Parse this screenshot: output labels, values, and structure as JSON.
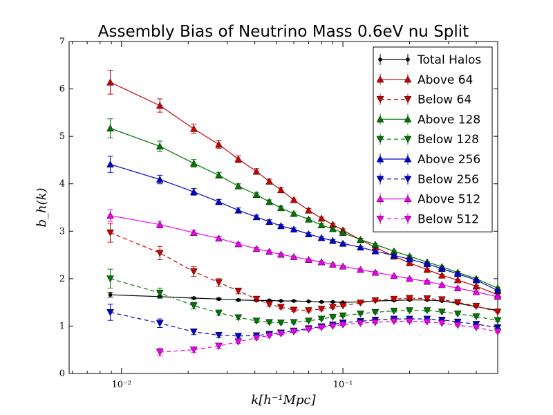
{
  "chart_data": {
    "type": "line",
    "title": "Assembly Bias of Neutrino Mass 0.6eV nu Split",
    "xlabel": "k[h⁻¹Mpc]",
    "ylabel": "b_h(k)",
    "xscale": "log",
    "xlim": [
      0.0058,
      0.5
    ],
    "ylim": [
      0,
      7
    ],
    "grid": false,
    "legend_position": "top-right",
    "x_tick_labels": [
      "10⁻²",
      "10⁻¹"
    ],
    "y_tick_labels": [
      "0",
      "1",
      "2",
      "3",
      "4",
      "5",
      "6",
      "7"
    ],
    "series": [
      {
        "name": "Total Halos",
        "color": "#000000",
        "marker": "circle",
        "linestyle": "solid",
        "points": [
          [
            0.0089,
            1.66
          ],
          [
            0.0149,
            1.62
          ],
          [
            0.0212,
            1.59
          ],
          [
            0.0275,
            1.57
          ],
          [
            0.0337,
            1.55
          ],
          [
            0.0407,
            1.54
          ],
          [
            0.0465,
            1.54
          ],
          [
            0.0525,
            1.53
          ],
          [
            0.06,
            1.53
          ],
          [
            0.07,
            1.52
          ],
          [
            0.08,
            1.51
          ],
          [
            0.09,
            1.51
          ],
          [
            0.1,
            1.5
          ],
          [
            0.12,
            1.51
          ],
          [
            0.14,
            1.53
          ],
          [
            0.17,
            1.54
          ],
          [
            0.2,
            1.55
          ],
          [
            0.24,
            1.55
          ],
          [
            0.28,
            1.53
          ],
          [
            0.33,
            1.48
          ],
          [
            0.4,
            1.41
          ],
          [
            0.5,
            1.33
          ]
        ],
        "errors": [
          0.05,
          0.03,
          0.02,
          0.02,
          0.02,
          0.01,
          0.01,
          0.01,
          0.01,
          0.01,
          0.01,
          0.01,
          0.01,
          0.01,
          0.01,
          0.01,
          0.01,
          0.01,
          0.01,
          0.01,
          0.01,
          0.01
        ]
      },
      {
        "name": "Above 64",
        "color": "#cc0000",
        "marker": "triangle-up",
        "linestyle": "solid",
        "points": [
          [
            0.0089,
            6.14
          ],
          [
            0.0149,
            5.65
          ],
          [
            0.0212,
            5.16
          ],
          [
            0.0275,
            4.83
          ],
          [
            0.0337,
            4.52
          ],
          [
            0.0407,
            4.26
          ],
          [
            0.0465,
            4.05
          ],
          [
            0.0525,
            3.87
          ],
          [
            0.06,
            3.66
          ],
          [
            0.07,
            3.44
          ],
          [
            0.08,
            3.27
          ],
          [
            0.09,
            3.14
          ],
          [
            0.1,
            3.02
          ],
          [
            0.12,
            2.82
          ],
          [
            0.14,
            2.66
          ],
          [
            0.17,
            2.47
          ],
          [
            0.2,
            2.33
          ],
          [
            0.24,
            2.19
          ],
          [
            0.28,
            2.07
          ],
          [
            0.33,
            1.97
          ],
          [
            0.4,
            1.84
          ],
          [
            0.5,
            1.66
          ]
        ],
        "errors": [
          0.25,
          0.14,
          0.1,
          0.08,
          0.07,
          0.06,
          0.05,
          0.05,
          0.04,
          0.04,
          0.03,
          0.03,
          0.03,
          0.03,
          0.02,
          0.02,
          0.02,
          0.02,
          0.02,
          0.02,
          0.02,
          0.02
        ]
      },
      {
        "name": "Below 64",
        "color": "#cc0000",
        "marker": "triangle-down",
        "linestyle": "dashed",
        "points": [
          [
            0.0089,
            2.97
          ],
          [
            0.0149,
            2.54
          ],
          [
            0.0212,
            2.15
          ],
          [
            0.0275,
            1.92
          ],
          [
            0.0337,
            1.74
          ],
          [
            0.0407,
            1.57
          ],
          [
            0.0465,
            1.46
          ],
          [
            0.0525,
            1.4
          ],
          [
            0.06,
            1.34
          ],
          [
            0.07,
            1.33
          ],
          [
            0.08,
            1.36
          ],
          [
            0.09,
            1.4
          ],
          [
            0.1,
            1.43
          ],
          [
            0.12,
            1.49
          ],
          [
            0.14,
            1.54
          ],
          [
            0.17,
            1.57
          ],
          [
            0.2,
            1.59
          ],
          [
            0.24,
            1.58
          ],
          [
            0.28,
            1.56
          ],
          [
            0.33,
            1.5
          ],
          [
            0.4,
            1.42
          ],
          [
            0.5,
            1.3
          ]
        ],
        "errors": [
          0.2,
          0.14,
          0.1,
          0.08,
          0.06,
          0.05,
          0.04,
          0.04,
          0.03,
          0.03,
          0.03,
          0.03,
          0.02,
          0.02,
          0.02,
          0.02,
          0.02,
          0.02,
          0.02,
          0.02,
          0.02,
          0.02
        ]
      },
      {
        "name": "Above 128",
        "color": "#007700",
        "marker": "triangle-up",
        "linestyle": "solid",
        "points": [
          [
            0.0089,
            5.17
          ],
          [
            0.0149,
            4.79
          ],
          [
            0.0212,
            4.43
          ],
          [
            0.0275,
            4.18
          ],
          [
            0.0337,
            3.95
          ],
          [
            0.0407,
            3.77
          ],
          [
            0.0465,
            3.62
          ],
          [
            0.0525,
            3.49
          ],
          [
            0.06,
            3.37
          ],
          [
            0.07,
            3.25
          ],
          [
            0.08,
            3.13
          ],
          [
            0.09,
            3.05
          ],
          [
            0.1,
            2.97
          ],
          [
            0.12,
            2.82
          ],
          [
            0.14,
            2.72
          ],
          [
            0.17,
            2.58
          ],
          [
            0.2,
            2.47
          ],
          [
            0.24,
            2.35
          ],
          [
            0.28,
            2.25
          ],
          [
            0.33,
            2.13
          ],
          [
            0.4,
            2.0
          ],
          [
            0.5,
            1.8
          ]
        ],
        "errors": [
          0.2,
          0.11,
          0.08,
          0.06,
          0.05,
          0.05,
          0.04,
          0.04,
          0.03,
          0.03,
          0.03,
          0.03,
          0.02,
          0.02,
          0.02,
          0.02,
          0.02,
          0.02,
          0.02,
          0.02,
          0.02,
          0.02
        ]
      },
      {
        "name": "Below 128",
        "color": "#007700",
        "marker": "triangle-down",
        "linestyle": "dashed",
        "points": [
          [
            0.0089,
            2.0
          ],
          [
            0.0149,
            1.7
          ],
          [
            0.0212,
            1.43
          ],
          [
            0.0275,
            1.28
          ],
          [
            0.0337,
            1.18
          ],
          [
            0.0407,
            1.11
          ],
          [
            0.0465,
            1.08
          ],
          [
            0.0525,
            1.07
          ],
          [
            0.06,
            1.08
          ],
          [
            0.07,
            1.11
          ],
          [
            0.08,
            1.15
          ],
          [
            0.09,
            1.19
          ],
          [
            0.1,
            1.22
          ],
          [
            0.12,
            1.26
          ],
          [
            0.14,
            1.29
          ],
          [
            0.17,
            1.32
          ],
          [
            0.2,
            1.33
          ],
          [
            0.24,
            1.33
          ],
          [
            0.28,
            1.3
          ],
          [
            0.33,
            1.26
          ],
          [
            0.4,
            1.2
          ],
          [
            0.5,
            1.12
          ]
        ],
        "errors": [
          0.2,
          0.1,
          0.07,
          0.05,
          0.04,
          0.04,
          0.03,
          0.03,
          0.03,
          0.02,
          0.02,
          0.02,
          0.02,
          0.02,
          0.02,
          0.02,
          0.02,
          0.02,
          0.02,
          0.02,
          0.02,
          0.02
        ]
      },
      {
        "name": "Above 256",
        "color": "#0000cc",
        "marker": "triangle-up",
        "linestyle": "solid",
        "points": [
          [
            0.0089,
            4.41
          ],
          [
            0.0149,
            4.09
          ],
          [
            0.0212,
            3.83
          ],
          [
            0.0275,
            3.62
          ],
          [
            0.0337,
            3.44
          ],
          [
            0.0407,
            3.3
          ],
          [
            0.0465,
            3.2
          ],
          [
            0.0525,
            3.11
          ],
          [
            0.06,
            3.04
          ],
          [
            0.07,
            2.94
          ],
          [
            0.08,
            2.86
          ],
          [
            0.09,
            2.8
          ],
          [
            0.1,
            2.74
          ],
          [
            0.12,
            2.66
          ],
          [
            0.14,
            2.58
          ],
          [
            0.17,
            2.49
          ],
          [
            0.2,
            2.41
          ],
          [
            0.24,
            2.31
          ],
          [
            0.28,
            2.21
          ],
          [
            0.33,
            2.1
          ],
          [
            0.4,
            1.97
          ],
          [
            0.5,
            1.75
          ]
        ],
        "errors": [
          0.17,
          0.09,
          0.07,
          0.05,
          0.05,
          0.04,
          0.04,
          0.03,
          0.03,
          0.03,
          0.02,
          0.02,
          0.02,
          0.02,
          0.02,
          0.02,
          0.02,
          0.02,
          0.02,
          0.02,
          0.02,
          0.02
        ]
      },
      {
        "name": "Below 256",
        "color": "#0000cc",
        "marker": "triangle-down",
        "linestyle": "dashed",
        "points": [
          [
            0.0089,
            1.29
          ],
          [
            0.0149,
            1.06
          ],
          [
            0.0212,
            0.88
          ],
          [
            0.0275,
            0.81
          ],
          [
            0.0337,
            0.79
          ],
          [
            0.0407,
            0.8
          ],
          [
            0.0465,
            0.83
          ],
          [
            0.0525,
            0.86
          ],
          [
            0.06,
            0.9
          ],
          [
            0.07,
            0.95
          ],
          [
            0.08,
            0.99
          ],
          [
            0.09,
            1.03
          ],
          [
            0.1,
            1.07
          ],
          [
            0.12,
            1.1
          ],
          [
            0.14,
            1.13
          ],
          [
            0.17,
            1.15
          ],
          [
            0.2,
            1.15
          ],
          [
            0.24,
            1.15
          ],
          [
            0.28,
            1.13
          ],
          [
            0.33,
            1.09
          ],
          [
            0.4,
            1.04
          ],
          [
            0.5,
            0.97
          ]
        ],
        "errors": [
          0.17,
          0.09,
          0.06,
          0.05,
          0.04,
          0.04,
          0.03,
          0.03,
          0.03,
          0.02,
          0.02,
          0.02,
          0.02,
          0.02,
          0.02,
          0.02,
          0.02,
          0.02,
          0.02,
          0.02,
          0.02,
          0.02
        ]
      },
      {
        "name": "Above 512",
        "color": "#ee00ee",
        "marker": "triangle-up",
        "linestyle": "solid",
        "points": [
          [
            0.0089,
            3.33
          ],
          [
            0.0149,
            3.14
          ],
          [
            0.0212,
            2.97
          ],
          [
            0.0275,
            2.85
          ],
          [
            0.0337,
            2.73
          ],
          [
            0.0407,
            2.63
          ],
          [
            0.0465,
            2.57
          ],
          [
            0.0525,
            2.51
          ],
          [
            0.06,
            2.46
          ],
          [
            0.07,
            2.4
          ],
          [
            0.08,
            2.35
          ],
          [
            0.09,
            2.3
          ],
          [
            0.1,
            2.26
          ],
          [
            0.12,
            2.19
          ],
          [
            0.14,
            2.13
          ],
          [
            0.17,
            2.06
          ],
          [
            0.2,
            2.0
          ],
          [
            0.24,
            1.94
          ],
          [
            0.28,
            1.87
          ],
          [
            0.33,
            1.8
          ],
          [
            0.4,
            1.72
          ],
          [
            0.5,
            1.62
          ]
        ],
        "errors": [
          0.12,
          0.07,
          0.05,
          0.04,
          0.03,
          0.03,
          0.03,
          0.02,
          0.02,
          0.02,
          0.02,
          0.02,
          0.02,
          0.02,
          0.02,
          0.02,
          0.02,
          0.02,
          0.02,
          0.02,
          0.02,
          0.02
        ]
      },
      {
        "name": "Below 512",
        "color": "#ee00ee",
        "marker": "triangle-down",
        "linestyle": "dashed",
        "points": [
          [
            0.0149,
            0.45
          ],
          [
            0.0212,
            0.5
          ],
          [
            0.0275,
            0.58
          ],
          [
            0.0337,
            0.67
          ],
          [
            0.0407,
            0.75
          ],
          [
            0.0465,
            0.8
          ],
          [
            0.0525,
            0.84
          ],
          [
            0.06,
            0.88
          ],
          [
            0.07,
            0.93
          ],
          [
            0.08,
            0.97
          ],
          [
            0.09,
            1.0
          ],
          [
            0.1,
            1.03
          ],
          [
            0.12,
            1.06
          ],
          [
            0.14,
            1.08
          ],
          [
            0.17,
            1.1
          ],
          [
            0.2,
            1.1
          ],
          [
            0.24,
            1.09
          ],
          [
            0.28,
            1.06
          ],
          [
            0.33,
            1.02
          ],
          [
            0.4,
            0.97
          ],
          [
            0.5,
            0.88
          ]
        ],
        "errors": [
          0.08,
          0.06,
          0.05,
          0.04,
          0.03,
          0.03,
          0.03,
          0.02,
          0.02,
          0.02,
          0.02,
          0.02,
          0.02,
          0.02,
          0.02,
          0.02,
          0.02,
          0.02,
          0.02,
          0.02,
          0.02
        ]
      }
    ]
  }
}
